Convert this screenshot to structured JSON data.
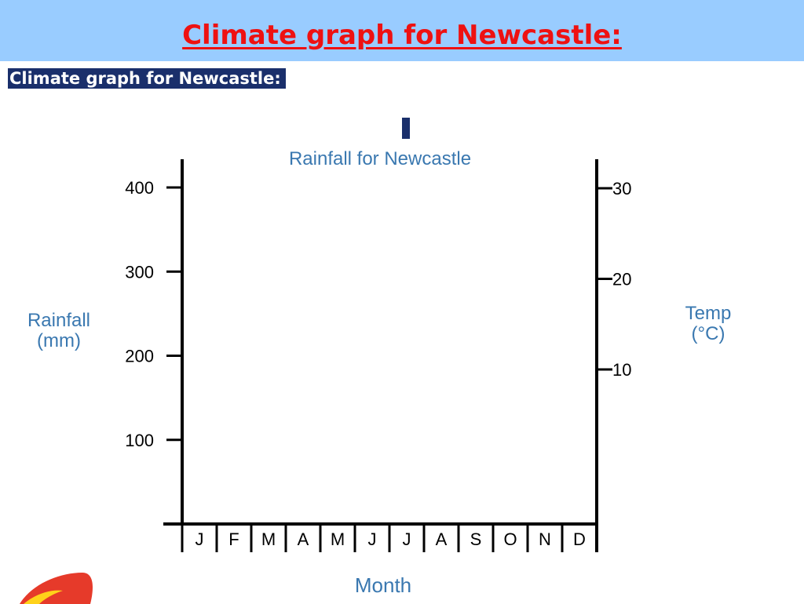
{
  "slide": {
    "title": "Climate graph for Newcastle:",
    "caption": "Climate graph for Newcastle:"
  },
  "chart_data": {
    "type": "bar",
    "title": "Rainfall for Newcastle",
    "xlabel": "Month",
    "ylabel": "Rainfall\n(mm)",
    "y2label": "Temp\n(°C)",
    "categories": [
      "J",
      "F",
      "M",
      "A",
      "M",
      "J",
      "J",
      "A",
      "S",
      "O",
      "N",
      "D"
    ],
    "ylim": [
      0,
      400
    ],
    "y_ticks": [
      100,
      200,
      300,
      400
    ],
    "y2lim": [
      -5,
      30
    ],
    "y2_ticks": [
      10,
      20,
      30
    ],
    "grid": false,
    "colors": {
      "text": "#3a78b0",
      "axis": "#000000",
      "header_bg": "#99ccff",
      "title": "#ee1111",
      "caption_bg": "#1a2f6b"
    }
  }
}
